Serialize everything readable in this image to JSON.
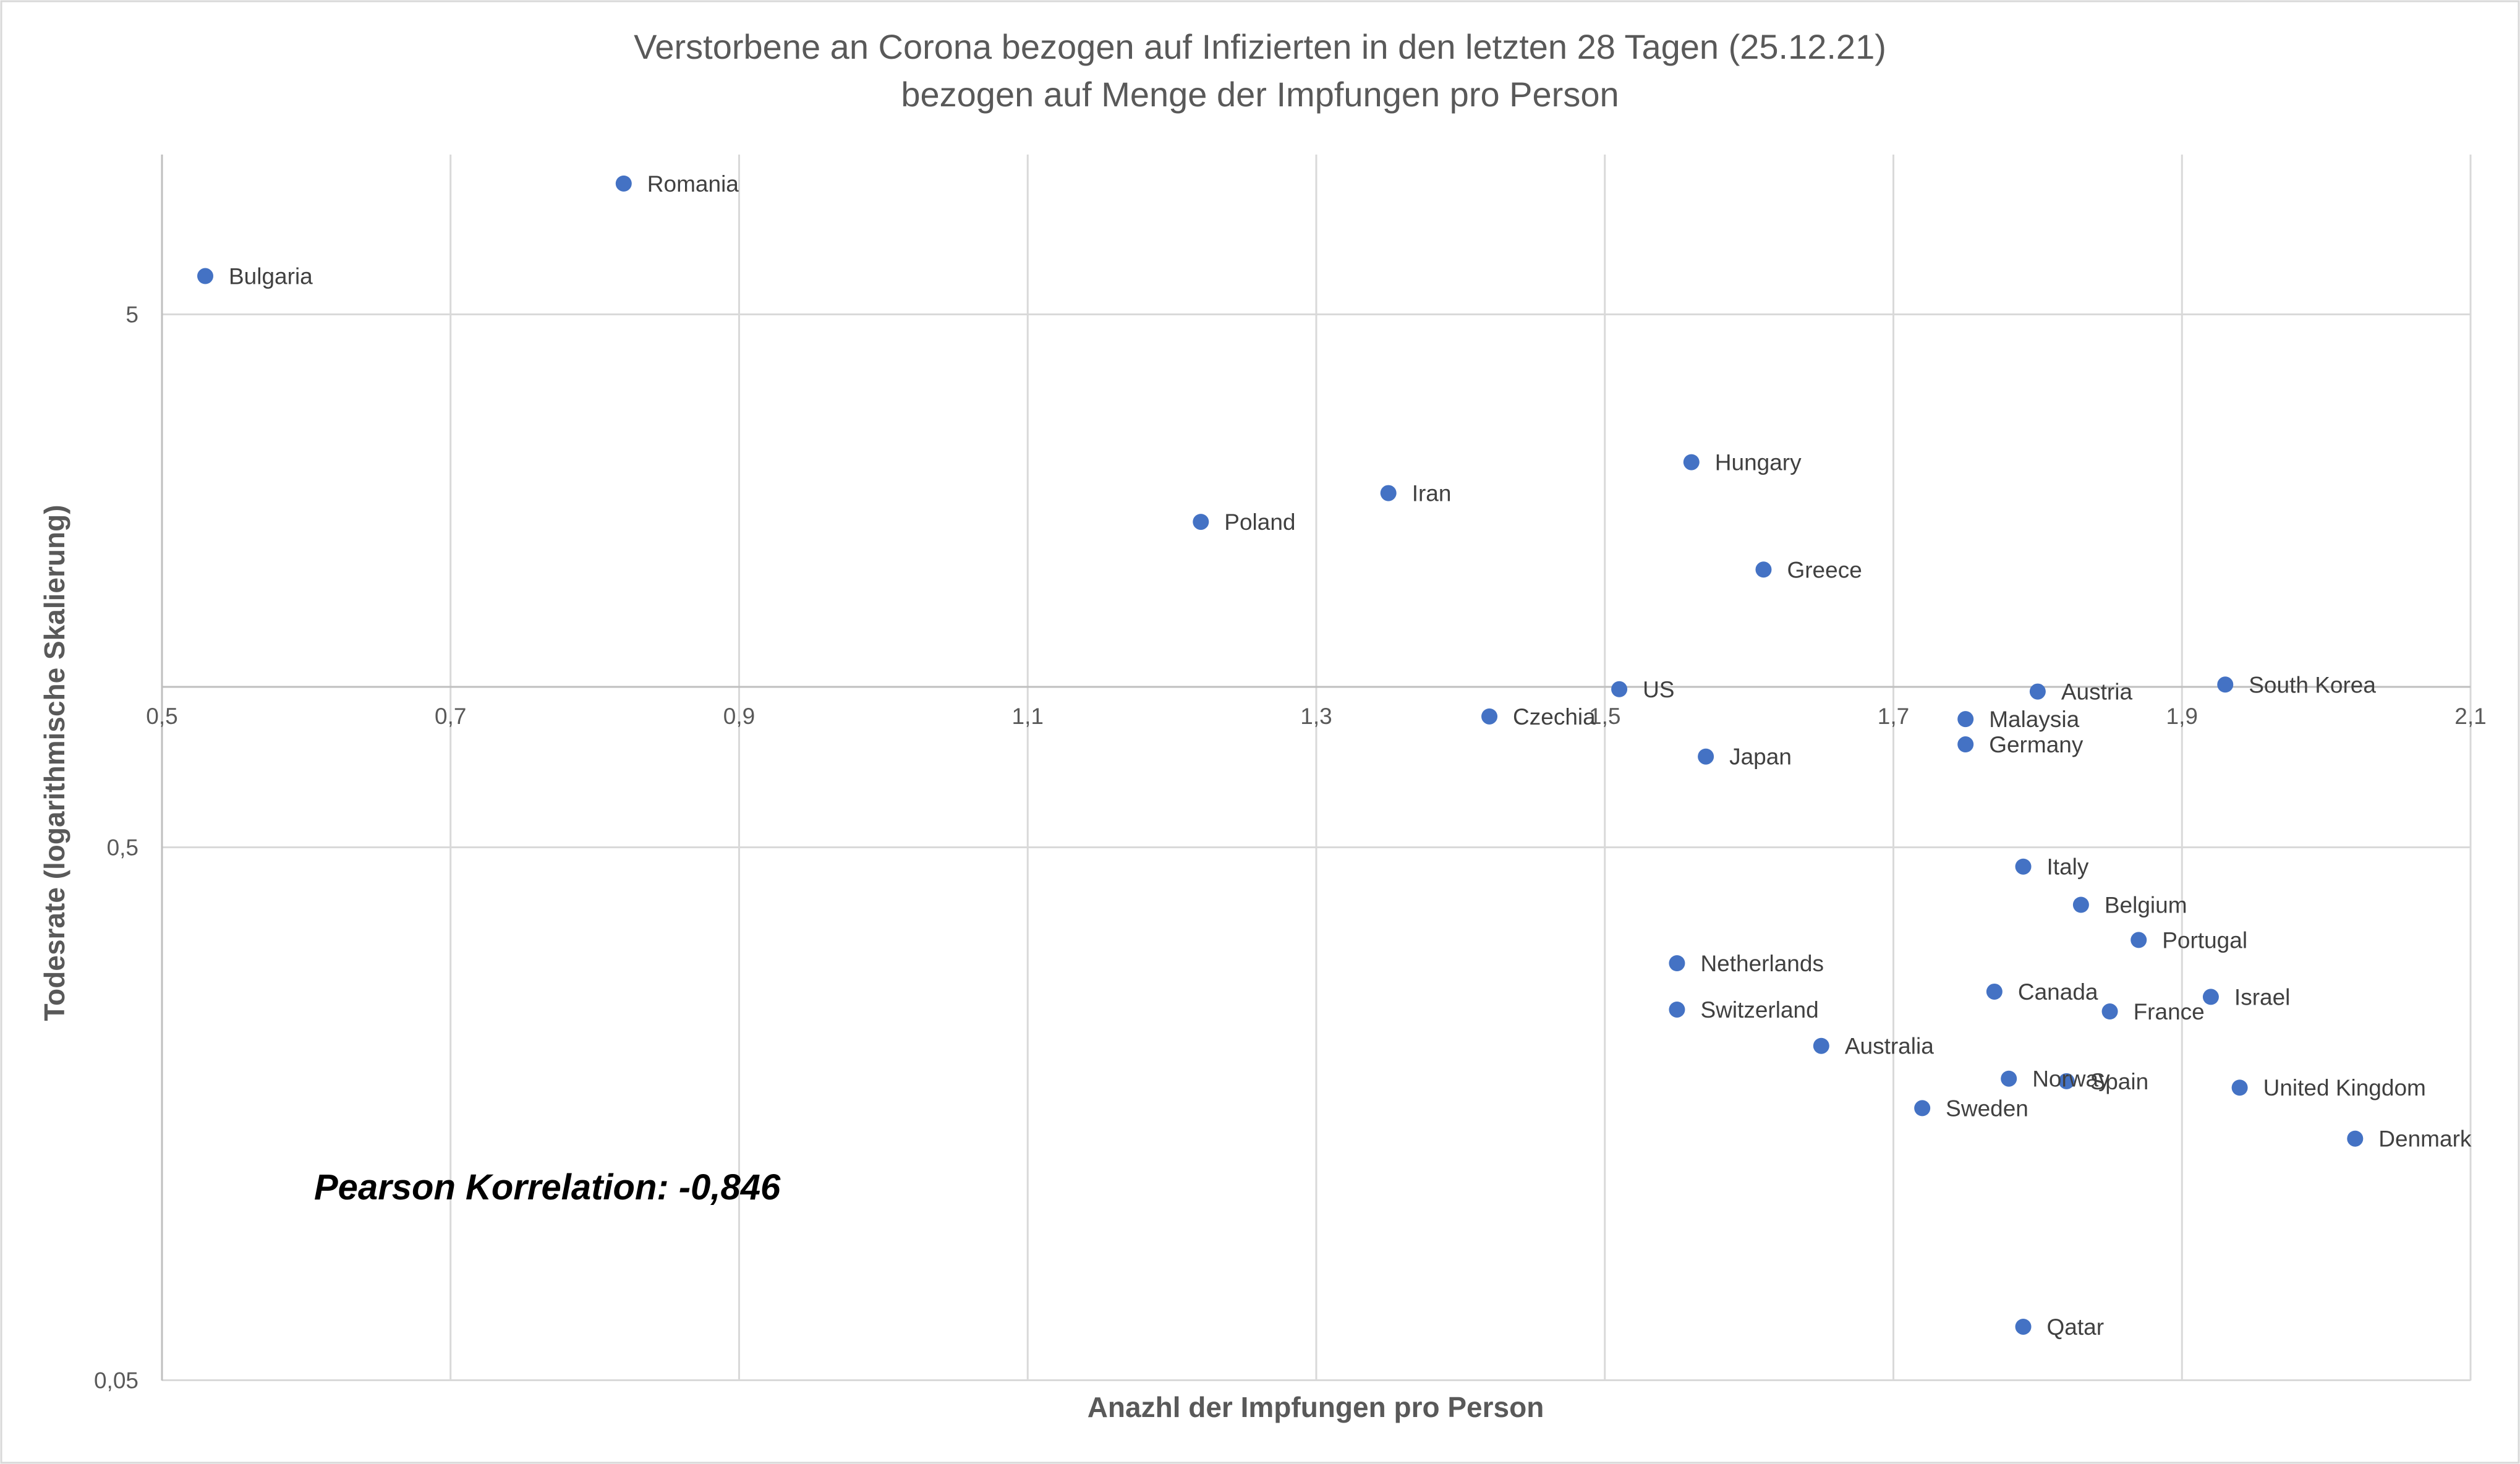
{
  "chart_data": {
    "type": "scatter",
    "title": [
      "Verstorbene an Corona bezogen auf Infizierten in den letzten 28 Tagen (25.12.21)",
      "bezogen auf Menge der Impfungen pro Person"
    ],
    "xlabel": "Anazhl der Impfungen pro Person",
    "ylabel": "Todesrate (logarithmische Skalierung)",
    "xlim": [
      0.5,
      2.1
    ],
    "ylim": [
      0.05,
      10
    ],
    "y_scale": "log",
    "x_ticks": [
      {
        "value": 0.5,
        "label": "0,5"
      },
      {
        "value": 0.7,
        "label": "0,7"
      },
      {
        "value": 0.9,
        "label": "0,9"
      },
      {
        "value": 1.1,
        "label": "1,1"
      },
      {
        "value": 1.3,
        "label": "1,3"
      },
      {
        "value": 1.5,
        "label": "1,5"
      },
      {
        "value": 1.7,
        "label": "1,7"
      },
      {
        "value": 1.9,
        "label": "1,9"
      },
      {
        "value": 2.1,
        "label": "2,1"
      }
    ],
    "y_ticks": [
      {
        "value": 0.05,
        "label": "0,05"
      },
      {
        "value": 0.5,
        "label": "0,5"
      },
      {
        "value": 5,
        "label": "5"
      }
    ],
    "grid": true,
    "legend": "none",
    "color": "#4472c4",
    "annotation": "Pearson Korrelation: -0,846",
    "points": [
      {
        "label": "Romania",
        "x": 0.82,
        "y": 8.8
      },
      {
        "label": "Bulgaria",
        "x": 0.53,
        "y": 5.9
      },
      {
        "label": "Hungary",
        "x": 1.56,
        "y": 2.64
      },
      {
        "label": "Iran",
        "x": 1.35,
        "y": 2.31
      },
      {
        "label": "Poland",
        "x": 1.22,
        "y": 2.04
      },
      {
        "label": "Greece",
        "x": 1.61,
        "y": 1.66
      },
      {
        "label": "US",
        "x": 1.51,
        "y": 0.99
      },
      {
        "label": "Austria",
        "x": 1.8,
        "y": 0.98
      },
      {
        "label": "South Korea",
        "x": 1.93,
        "y": 1.01
      },
      {
        "label": "Czechia",
        "x": 1.42,
        "y": 0.88
      },
      {
        "label": "Malaysia",
        "x": 1.75,
        "y": 0.87
      },
      {
        "label": "Germany",
        "x": 1.75,
        "y": 0.78
      },
      {
        "label": "Japan",
        "x": 1.57,
        "y": 0.74
      },
      {
        "label": "Italy",
        "x": 1.79,
        "y": 0.46
      },
      {
        "label": "Belgium",
        "x": 1.83,
        "y": 0.39
      },
      {
        "label": "Portugal",
        "x": 1.87,
        "y": 0.335
      },
      {
        "label": "Netherlands",
        "x": 1.55,
        "y": 0.303
      },
      {
        "label": "Canada",
        "x": 1.77,
        "y": 0.268
      },
      {
        "label": "Israel",
        "x": 1.92,
        "y": 0.262
      },
      {
        "label": "Switzerland",
        "x": 1.55,
        "y": 0.248
      },
      {
        "label": "France",
        "x": 1.85,
        "y": 0.246
      },
      {
        "label": "Australia",
        "x": 1.65,
        "y": 0.212
      },
      {
        "label": "Norway",
        "x": 1.78,
        "y": 0.184
      },
      {
        "label": "Spain",
        "x": 1.82,
        "y": 0.182
      },
      {
        "label": "United Kingdom",
        "x": 1.94,
        "y": 0.177
      },
      {
        "label": "Sweden",
        "x": 1.72,
        "y": 0.162
      },
      {
        "label": "Denmark",
        "x": 2.02,
        "y": 0.142
      },
      {
        "label": "Qatar",
        "x": 1.79,
        "y": 0.063
      }
    ]
  }
}
